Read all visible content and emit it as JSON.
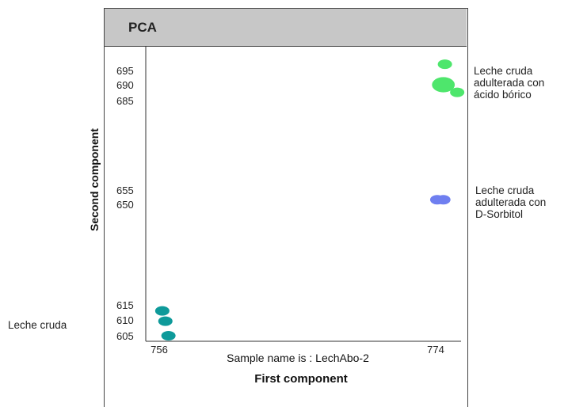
{
  "chart_data": {
    "type": "scatter",
    "title": "PCA",
    "xlabel": "First component",
    "ylabel": "Second component",
    "subtitle": "Sample name is : LechAbo-2",
    "x_ticks": [
      "756",
      "774"
    ],
    "y_ticks": [
      "695",
      "690",
      "685",
      "655",
      "650",
      "615",
      "610",
      "605"
    ],
    "xlim": [
      755.5,
      776
    ],
    "ylim": [
      603,
      699
    ],
    "colors": {
      "leche_cruda": "#0e9a9a",
      "sorbitol": "#6f7ff0",
      "acido_borico": "#4ee66c"
    },
    "series": [
      {
        "label_lines": [
          "Leche cruda"
        ],
        "color_key": "leche_cruda",
        "points": [
          {
            "x": 756.2,
            "y": 613.0,
            "r": 1
          },
          {
            "x": 756.4,
            "y": 609.6,
            "r": 1
          },
          {
            "x": 756.6,
            "y": 605.0,
            "r": 1
          }
        ]
      },
      {
        "label_lines": [
          "Leche cruda",
          "adulterada con",
          "D-Sorbitol"
        ],
        "color_key": "sorbitol",
        "points": [
          {
            "x": 774.1,
            "y": 651.6,
            "r": 1
          },
          {
            "x": 774.5,
            "y": 651.6,
            "r": 1
          }
        ]
      },
      {
        "label_lines": [
          "Leche cruda",
          "adulterada con",
          "ácido bórico"
        ],
        "color_key": "acido_borico",
        "points": [
          {
            "x": 774.6,
            "y": 697.2,
            "r": 1
          },
          {
            "x": 774.5,
            "y": 690.0,
            "r": 1.6
          },
          {
            "x": 775.4,
            "y": 687.6,
            "r": 1
          }
        ]
      }
    ]
  }
}
